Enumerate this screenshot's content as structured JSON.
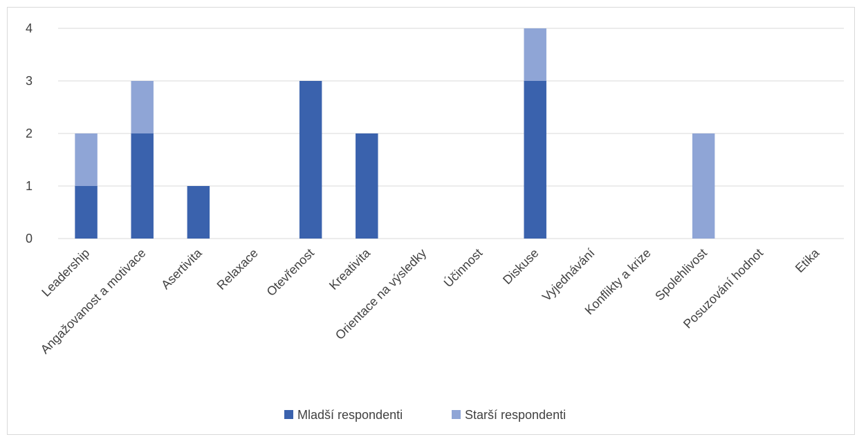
{
  "chart_data": {
    "type": "bar",
    "stacked": true,
    "categories": [
      "Leadership",
      "Angažovanost a motivace",
      "Asertivita",
      "Relaxace",
      "Otevřenost",
      "Kreativita",
      "Orientace na výsledky",
      "Účinnost",
      "Diskuse",
      "Vyjednávání",
      "Konflikty a krize",
      "Spolehlivost",
      "Posuzování hodnot",
      "Etika"
    ],
    "series": [
      {
        "name": "Mladší respondenti",
        "color": "#3a62ad",
        "values": [
          1,
          2,
          1,
          0,
          3,
          2,
          0,
          0,
          3,
          0,
          0,
          0,
          0,
          0
        ]
      },
      {
        "name": "Starší respondenti",
        "color": "#8fa5d6",
        "values": [
          1,
          1,
          0,
          0,
          0,
          0,
          0,
          0,
          1,
          0,
          0,
          2,
          0,
          0
        ]
      }
    ],
    "title": "",
    "xlabel": "",
    "ylabel": "",
    "ylim": [
      0,
      4
    ],
    "yticks": [
      0,
      1,
      2,
      3,
      4
    ],
    "grid": true,
    "legend": "bottom",
    "gridColor": "#d9d9d9"
  }
}
